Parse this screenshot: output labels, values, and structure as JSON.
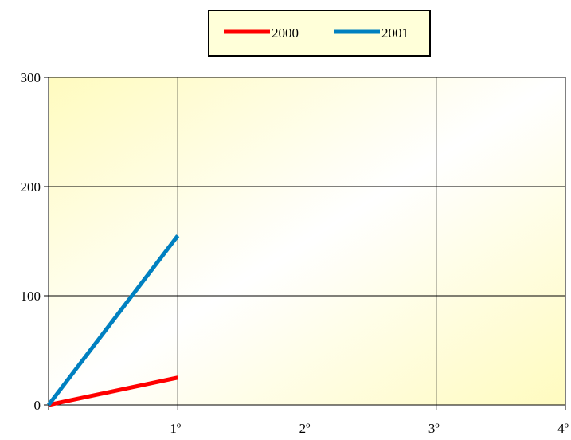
{
  "chart_data": {
    "type": "line",
    "x_categories": [
      "",
      "1º",
      "2º",
      "3º",
      "4º"
    ],
    "ylim": [
      0,
      300
    ],
    "yticks": [
      0,
      100,
      200,
      300
    ],
    "grid": true,
    "legend_position": "top",
    "background": "gradient",
    "gradient_colors": [
      "#fffbbf",
      "#ffffff",
      "#fffbbf"
    ],
    "series": [
      {
        "name": "2000",
        "color": "#ff0000",
        "values": [
          0,
          25
        ]
      },
      {
        "name": "2001",
        "color": "#0080c0",
        "values": [
          0,
          155
        ]
      }
    ]
  }
}
